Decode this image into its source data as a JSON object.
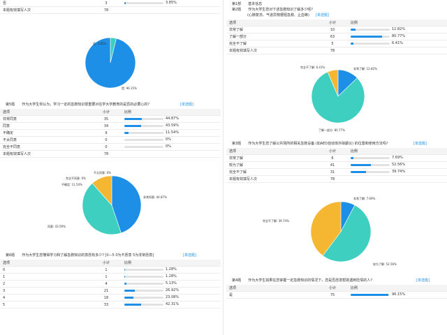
{
  "q4_tail": {
    "rows": [
      {
        "label": "否",
        "count": "3",
        "pct": "3.85%",
        "value": 3.85
      },
      {
        "label": "本题有效填写人次",
        "count": "78",
        "pct": "",
        "value": null
      }
    ]
  },
  "q4_pie": {
    "slices": [
      {
        "label": "否",
        "value": 3.85,
        "color": "#3ecfc1"
      },
      {
        "label": "是",
        "value": 96.15,
        "color": "#1e8fe6"
      }
    ],
    "labels": [
      "否: 3.85%",
      "是: 96.15%"
    ]
  },
  "q5": {
    "num": "第5题",
    "title": "作为大学生你认为，学习一定的急救知识很重要对在学大学教育的是否的必要心的?",
    "tag": "[单选题]",
    "headers": [
      "选项",
      "小计",
      "比例"
    ],
    "rows": [
      {
        "label": "非常同意",
        "count": "35",
        "pct": "44.87%",
        "value": 44.87
      },
      {
        "label": "同意",
        "count": "34",
        "pct": "43.59%",
        "value": 43.59
      },
      {
        "label": "不确定",
        "count": "9",
        "pct": "11.54%",
        "value": 11.54
      },
      {
        "label": "不太同意",
        "count": "0",
        "pct": "0%",
        "value": 0
      },
      {
        "label": "完全不同意",
        "count": "0",
        "pct": "0%",
        "value": 0
      },
      {
        "label": "本题有效填写人次",
        "count": "78",
        "pct": "",
        "value": null
      }
    ],
    "pie": {
      "slices": [
        {
          "value": 44.87,
          "color": "#1e8fe6"
        },
        {
          "value": 43.59,
          "color": "#3ecfc1"
        },
        {
          "value": 11.54,
          "color": "#f5b731"
        }
      ],
      "labels": [
        "非常同意: 44.87%",
        "同意: 43.59%",
        "不确定: 11.54%",
        "完全不同意: 0%",
        "不太同意: 0%"
      ]
    }
  },
  "q6": {
    "num": "第6题",
    "title": "作为大学生您懂得学习和了解急救知识的意愿有多少? [0—5 0为不愿意 5为非常愿意]",
    "tag": "[单选题]",
    "headers": [
      "选项",
      "小计",
      "比例"
    ],
    "rows": [
      {
        "label": "0",
        "count": "1",
        "pct": "1.28%",
        "value": 1.28
      },
      {
        "label": "1",
        "count": "1",
        "pct": "1.28%",
        "value": 1.28
      },
      {
        "label": "2",
        "count": "4",
        "pct": "5.13%",
        "value": 5.13
      },
      {
        "label": "3",
        "count": "21",
        "pct": "26.92%",
        "value": 26.92
      },
      {
        "label": "4",
        "count": "18",
        "pct": "23.08%",
        "value": 23.08
      },
      {
        "label": "5",
        "count": "33",
        "pct": "42.31%",
        "value": 42.31
      }
    ]
  },
  "right": {
    "section_num": "第1部",
    "section_title": "基本信息",
    "q2": {
      "num": "第2题",
      "title": "作为大学生您对下述急救知识了解多少呢?",
      "subtitle": "(心肺复苏、气道异物梗阻急救、止血等)",
      "tag": "[单选题]",
      "headers": [
        "选项",
        "小计",
        "比例"
      ],
      "rows": [
        {
          "label": "非常了解",
          "count": "10",
          "pct": "12.82%",
          "value": 12.82
        },
        {
          "label": "了解一部分",
          "count": "63",
          "pct": "80.77%",
          "value": 80.77
        },
        {
          "label": "完全不了解",
          "count": "5",
          "pct": "6.41%",
          "value": 6.41
        },
        {
          "label": "本题有效填写人次",
          "count": "78",
          "pct": "",
          "value": null
        }
      ],
      "pie": {
        "slices": [
          {
            "value": 12.82,
            "color": "#1e8fe6"
          },
          {
            "value": 80.77,
            "color": "#3ecfc1"
          },
          {
            "value": 6.41,
            "color": "#f5b731"
          }
        ],
        "labels": [
          "非常了解: 12.82%",
          "了解一部分: 80.77%",
          "完全不了解: 6.41%"
        ]
      }
    },
    "q3": {
      "num": "第3题",
      "title": "作为大学生您了解公共场所的相关急救设备 (如AED自动体外除颤仪) 的位置和使用方法吗?",
      "tag": "[单选题]",
      "headers": [
        "选项",
        "小计",
        "比例"
      ],
      "rows": [
        {
          "label": "非常了解",
          "count": "6",
          "pct": "7.69%",
          "value": 7.69
        },
        {
          "label": "较为了解",
          "count": "41",
          "pct": "52.56%",
          "value": 52.56
        },
        {
          "label": "完全不了解",
          "count": "31",
          "pct": "39.74%",
          "value": 39.74
        },
        {
          "label": "本题有效填写人次",
          "count": "78",
          "pct": "",
          "value": null
        }
      ],
      "pie": {
        "slices": [
          {
            "value": 7.69,
            "color": "#1e8fe6"
          },
          {
            "value": 52.56,
            "color": "#3ecfc1"
          },
          {
            "value": 39.74,
            "color": "#f5b731"
          }
        ],
        "labels": [
          "非常了解: 7.69%",
          "较为了解: 52.56%",
          "完全不了解: 39.74%"
        ]
      }
    },
    "q4": {
      "num": "第4题",
      "title": "作为大学生如果在您掌握一定急救知识的情况下，您是否愿意帮助遇到险情的人?",
      "tag": "[单选题]",
      "headers": [
        "选项",
        "小计",
        "比例"
      ],
      "rows": [
        {
          "label": "是",
          "count": "75",
          "pct": "96.15%",
          "value": 96.15
        }
      ]
    }
  }
}
